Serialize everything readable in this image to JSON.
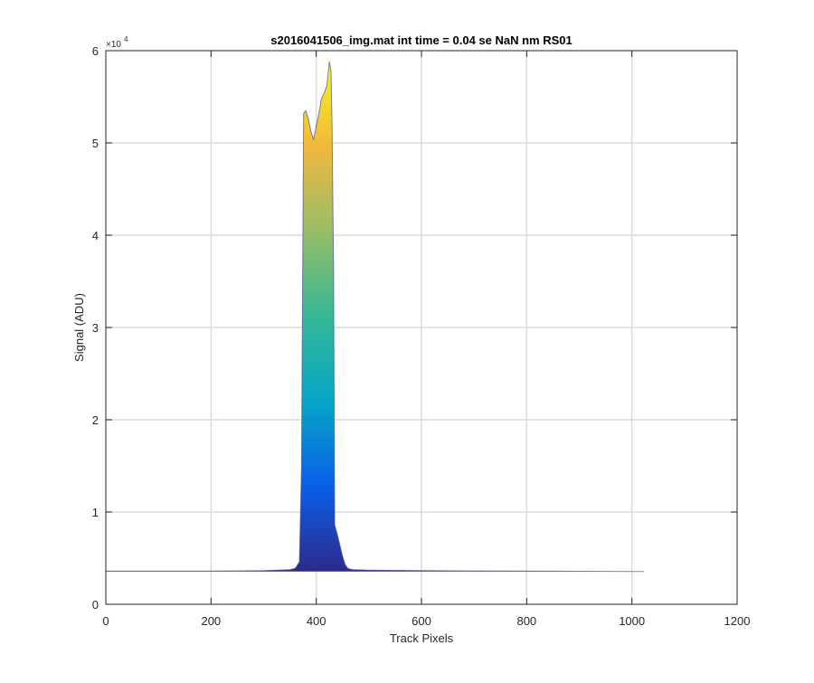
{
  "chart_data": {
    "type": "area",
    "title": "s2016041506_img.mat int time = 0.04 se  NaN nm RS01",
    "xlabel": "Track Pixels",
    "ylabel": "Signal (ADU)",
    "exponent_base": "×10",
    "exponent_power": "4",
    "xlim": [
      0,
      1200
    ],
    "ylim": [
      0,
      60000
    ],
    "xticks": [
      0,
      200,
      400,
      600,
      800,
      1000,
      1200
    ],
    "yticks": [
      0,
      10000,
      20000,
      30000,
      40000,
      50000,
      60000
    ],
    "xtick_labels": [
      "0",
      "200",
      "400",
      "600",
      "800",
      "1000",
      "1200"
    ],
    "ytick_labels": [
      "0",
      "1",
      "2",
      "3",
      "4",
      "5",
      "6"
    ],
    "grid": true,
    "colormap": [
      "#2e2a8a",
      "#0a5ee8",
      "#06a6c8",
      "#35b896",
      "#97bd68",
      "#f1b83e",
      "#f9f712"
    ],
    "series": [
      {
        "x": [
          0,
          100,
          200,
          300,
          350,
          360,
          368,
          372,
          376,
          380,
          385,
          390,
          395,
          400,
          405,
          410,
          415,
          420,
          425,
          428,
          430,
          433,
          435,
          440,
          445,
          450,
          455,
          460,
          465,
          470,
          500,
          600,
          700,
          800,
          900,
          1000,
          1023
        ],
        "y": [
          3600,
          3600,
          3600,
          3650,
          3750,
          3900,
          4600,
          15000,
          53200,
          53500,
          52600,
          51200,
          50400,
          51800,
          53200,
          54800,
          55400,
          56200,
          58800,
          57800,
          52000,
          36000,
          8600,
          7600,
          6400,
          5200,
          4300,
          3900,
          3800,
          3750,
          3700,
          3650,
          3620,
          3600,
          3580,
          3560,
          3550
        ]
      }
    ]
  }
}
